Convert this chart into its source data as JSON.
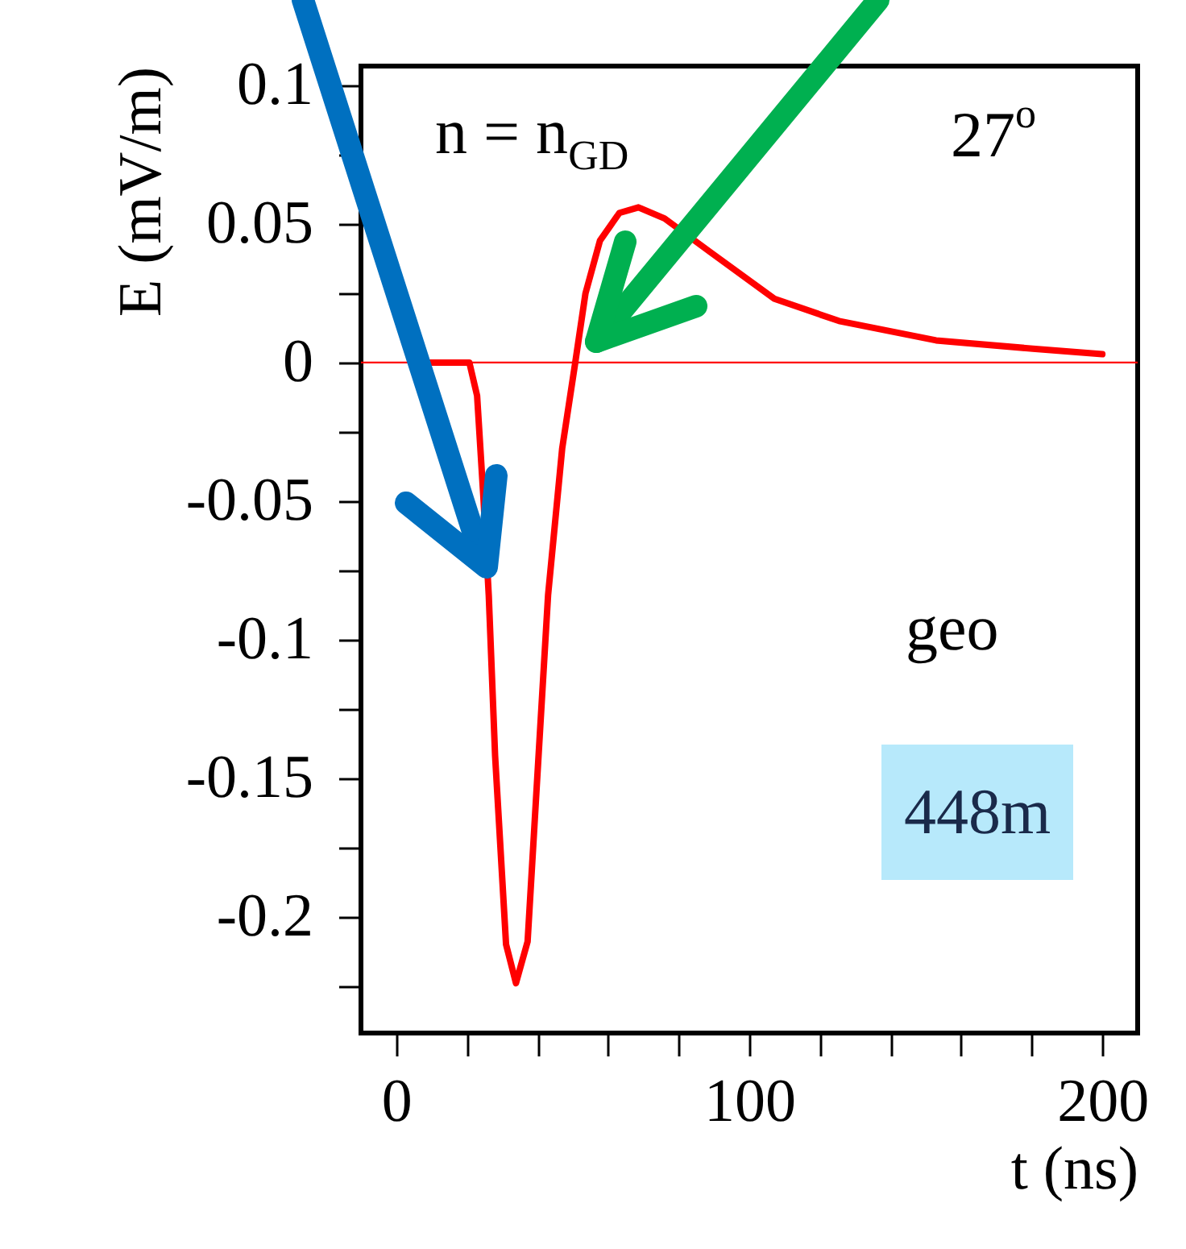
{
  "chart_data": {
    "type": "line",
    "xlabel": "t (ns)",
    "ylabel": "E (mV/m)",
    "x": [
      5,
      20.7,
      22.9,
      24.7,
      26.2,
      28,
      31.1,
      33.9,
      37.2,
      40.3,
      43,
      47,
      50.7,
      53.6,
      57.7,
      63.2,
      68.6,
      76,
      88.8,
      107.1,
      125.4,
      152.9,
      180.3,
      200
    ],
    "series": [
      {
        "color": "#ff0000",
        "values": [
          0,
          0,
          -0.012,
          -0.049,
          -0.084,
          -0.142,
          -0.21,
          -0.224,
          -0.209,
          -0.142,
          -0.084,
          -0.031,
          0,
          0.025,
          0.044,
          0.054,
          0.056,
          0.052,
          0.04,
          0.023,
          0.015,
          0.008,
          0.005,
          0.003
        ]
      }
    ],
    "xlim": [
      -10,
      210
    ],
    "xticks": [
      0,
      {
        "value": 20,
        "label": null
      },
      {
        "value": 40,
        "label": null
      },
      {
        "value": 60,
        "label": null
      },
      {
        "value": 80,
        "label": null
      },
      100,
      {
        "value": 120,
        "label": null
      },
      {
        "value": 140,
        "label": null
      },
      {
        "value": 160,
        "label": null
      },
      {
        "value": 180,
        "label": null
      },
      200
    ],
    "ylim": [
      -0.242,
      0.107
    ],
    "yticks": [
      0.1,
      {
        "value": 0.075,
        "label": null
      },
      0.05,
      {
        "value": 0.025,
        "label": null
      },
      0,
      {
        "value": -0.025,
        "label": null
      },
      -0.05,
      {
        "value": -0.075,
        "label": null
      },
      -0.1,
      {
        "value": -0.125,
        "label": null
      },
      -0.15,
      {
        "value": -0.175,
        "label": null
      },
      -0.2,
      {
        "value": -0.225,
        "label": null
      }
    ],
    "ref_lines": [
      {
        "axis": "y",
        "value": 0,
        "color": "#ff0000"
      }
    ],
    "annotations": [
      "n = n$_{GD}$",
      "27$^{o}$",
      "geo",
      "448m"
    ],
    "grid": false,
    "marker": "none",
    "line_style": "solid"
  }
}
